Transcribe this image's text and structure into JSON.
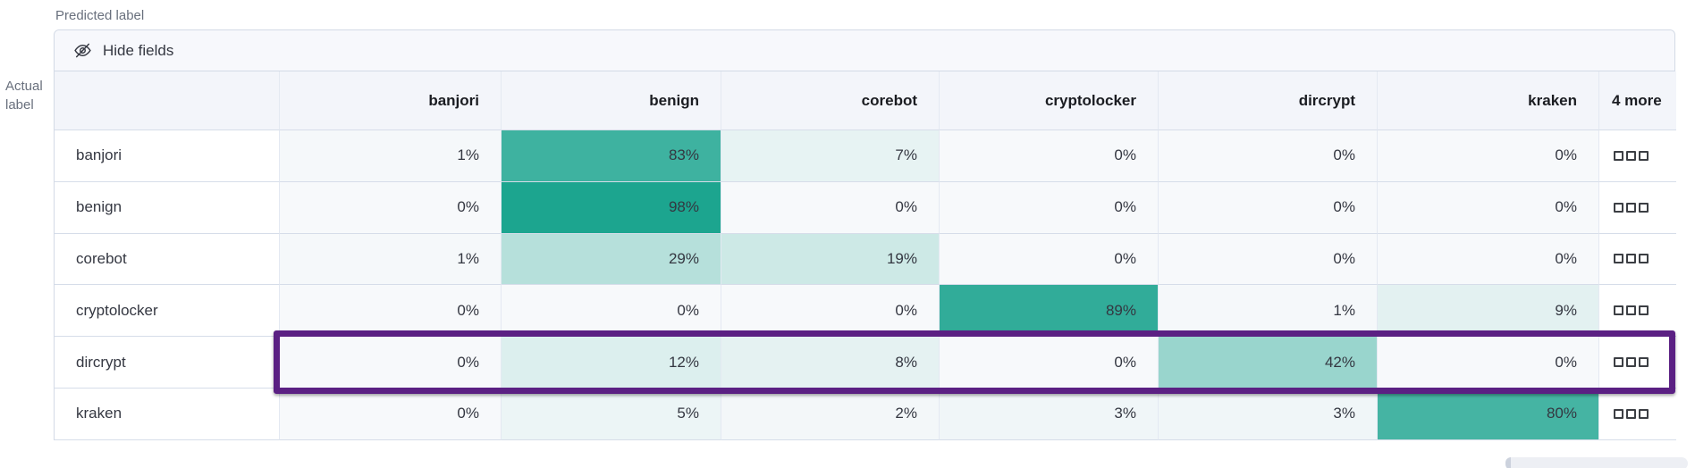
{
  "axis_labels": {
    "predicted": "Predicted label",
    "actual": "Actual label"
  },
  "toolbar": {
    "hide_fields_label": "Hide fields",
    "hide_fields_icon": "eye-closed-icon"
  },
  "chart_data": {
    "type": "heatmap",
    "columns": [
      "banjori",
      "benign",
      "corebot",
      "cryptolocker",
      "dircrypt",
      "kraken"
    ],
    "more_column_label": "4 more",
    "rows": [
      {
        "label": "banjori",
        "values": [
          1,
          83,
          7,
          0,
          0,
          0
        ]
      },
      {
        "label": "benign",
        "values": [
          0,
          98,
          0,
          0,
          0,
          0
        ]
      },
      {
        "label": "corebot",
        "values": [
          1,
          29,
          19,
          0,
          0,
          0
        ]
      },
      {
        "label": "cryptolocker",
        "values": [
          0,
          0,
          0,
          89,
          1,
          9
        ]
      },
      {
        "label": "dircrypt",
        "values": [
          0,
          12,
          8,
          0,
          42,
          0
        ],
        "highlighted": true
      },
      {
        "label": "kraken",
        "values": [
          0,
          5,
          2,
          3,
          3,
          80
        ]
      }
    ],
    "value_suffix": "%",
    "value_range": [
      0,
      100
    ],
    "color_scale": {
      "min": "#f7f9fb",
      "max": "#18a38d"
    },
    "highlight_color": "#5b2083",
    "more_cell_icon": "boxes-horizontal-icon"
  }
}
